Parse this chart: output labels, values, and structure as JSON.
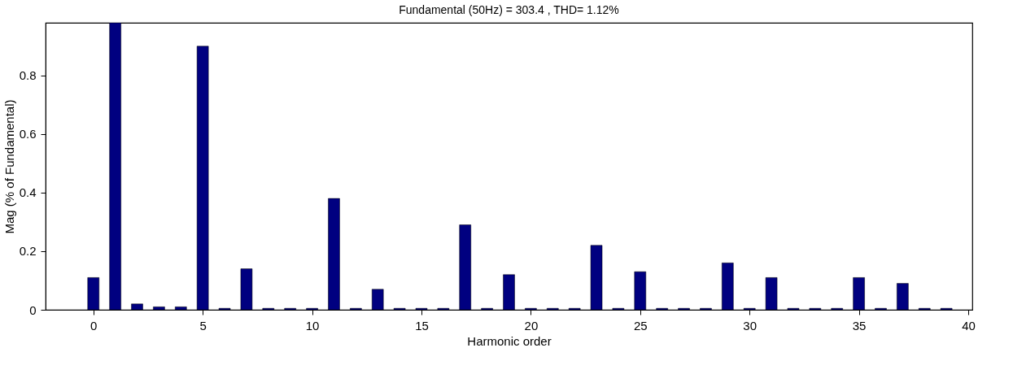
{
  "chart_data": {
    "type": "bar",
    "title": "Fundamental (50Hz) = 303.4 , THD= 1.12%",
    "xlabel": "Harmonic order",
    "ylabel": "Mag (% of Fundamental)",
    "x": [
      0,
      1,
      2,
      3,
      4,
      5,
      6,
      7,
      8,
      9,
      10,
      11,
      12,
      13,
      14,
      15,
      16,
      17,
      18,
      19,
      20,
      21,
      22,
      23,
      24,
      25,
      26,
      27,
      28,
      29,
      30,
      31,
      32,
      33,
      34,
      35,
      36,
      37,
      38,
      39
    ],
    "values": [
      0.11,
      0.98,
      0.02,
      0.01,
      0.01,
      0.9,
      0.005,
      0.14,
      0.005,
      0.005,
      0.005,
      0.38,
      0.005,
      0.07,
      0.005,
      0.005,
      0.005,
      0.29,
      0.005,
      0.12,
      0.005,
      0.005,
      0.005,
      0.22,
      0.005,
      0.13,
      0.005,
      0.005,
      0.005,
      0.16,
      0.005,
      0.11,
      0.005,
      0.005,
      0.005,
      0.11,
      0.005,
      0.09,
      0.005,
      0.005
    ],
    "color": "#000080",
    "xlim": [
      -2,
      40
    ],
    "xticks": [
      0,
      5,
      10,
      15,
      20,
      25,
      30,
      35,
      40
    ],
    "ylim": [
      0,
      0.98
    ],
    "yticks": [
      0,
      0.2,
      0.4,
      0.6,
      0.8
    ],
    "grid": false
  }
}
